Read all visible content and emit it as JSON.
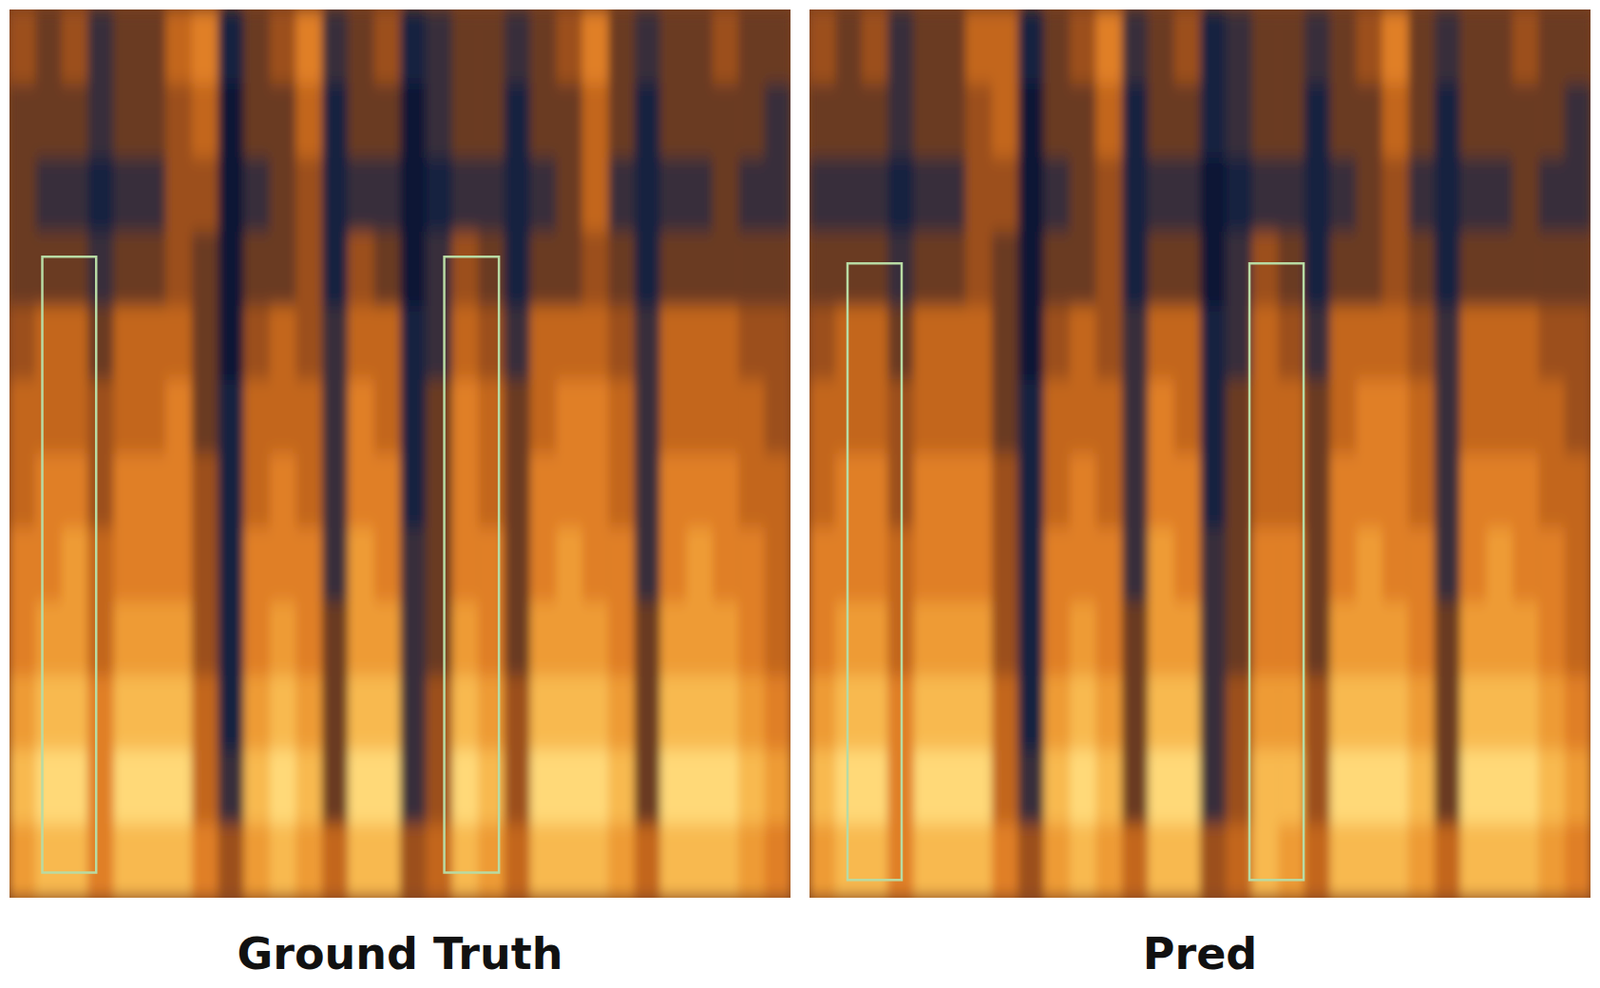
{
  "chart_data": [
    {
      "type": "heatmap",
      "title": "Ground Truth",
      "tick_labels": false,
      "xlim": [
        0,
        30
      ],
      "ylim": [
        0,
        12
      ],
      "color_range": [
        0,
        9
      ],
      "values": [
        [
          4,
          3,
          4,
          2,
          3,
          3,
          5,
          6,
          1,
          3,
          4,
          6,
          2,
          3,
          4,
          1,
          2,
          3,
          3,
          2,
          3,
          4,
          6,
          3,
          2,
          3,
          3,
          4,
          3,
          3
        ],
        [
          3,
          3,
          3,
          2,
          3,
          3,
          4,
          5,
          0,
          3,
          3,
          5,
          1,
          3,
          3,
          0,
          2,
          3,
          3,
          1,
          3,
          3,
          5,
          3,
          1,
          3,
          3,
          3,
          3,
          2
        ],
        [
          3,
          2,
          2,
          1,
          2,
          2,
          4,
          4,
          0,
          2,
          3,
          4,
          1,
          2,
          2,
          0,
          1,
          2,
          2,
          1,
          2,
          3,
          5,
          2,
          1,
          2,
          2,
          3,
          2,
          2
        ],
        [
          3,
          3,
          3,
          2,
          3,
          3,
          4,
          3,
          0,
          3,
          3,
          4,
          1,
          4,
          3,
          0,
          2,
          4,
          3,
          1,
          3,
          3,
          4,
          3,
          1,
          3,
          3,
          3,
          3,
          3
        ],
        [
          4,
          5,
          5,
          3,
          5,
          5,
          5,
          3,
          0,
          4,
          5,
          4,
          2,
          5,
          5,
          1,
          2,
          5,
          4,
          2,
          5,
          5,
          5,
          4,
          2,
          5,
          5,
          5,
          4,
          4
        ],
        [
          5,
          5,
          5,
          4,
          5,
          5,
          6,
          3,
          1,
          5,
          5,
          5,
          2,
          6,
          5,
          1,
          3,
          6,
          5,
          3,
          5,
          6,
          6,
          5,
          2,
          5,
          5,
          5,
          5,
          4
        ],
        [
          5,
          6,
          6,
          4,
          6,
          6,
          6,
          4,
          1,
          5,
          6,
          5,
          2,
          6,
          6,
          1,
          3,
          6,
          5,
          3,
          6,
          6,
          6,
          5,
          2,
          6,
          6,
          6,
          5,
          5
        ],
        [
          6,
          6,
          7,
          5,
          6,
          6,
          6,
          4,
          1,
          6,
          6,
          6,
          2,
          7,
          6,
          2,
          3,
          6,
          6,
          3,
          6,
          7,
          6,
          6,
          2,
          6,
          7,
          6,
          6,
          5
        ],
        [
          6,
          7,
          7,
          5,
          7,
          7,
          7,
          4,
          1,
          6,
          7,
          6,
          3,
          7,
          7,
          2,
          3,
          7,
          6,
          3,
          7,
          7,
          7,
          6,
          3,
          7,
          7,
          7,
          6,
          5
        ],
        [
          7,
          8,
          8,
          6,
          8,
          8,
          8,
          5,
          1,
          7,
          8,
          7,
          3,
          8,
          8,
          2,
          4,
          8,
          7,
          4,
          8,
          8,
          8,
          7,
          3,
          8,
          8,
          8,
          7,
          6
        ],
        [
          8,
          9,
          9,
          6,
          9,
          9,
          9,
          5,
          2,
          8,
          9,
          8,
          3,
          9,
          9,
          2,
          4,
          9,
          8,
          4,
          9,
          9,
          9,
          8,
          3,
          9,
          9,
          9,
          8,
          7
        ],
        [
          7,
          8,
          8,
          6,
          8,
          8,
          8,
          6,
          4,
          7,
          8,
          7,
          5,
          8,
          8,
          4,
          5,
          8,
          7,
          5,
          8,
          8,
          8,
          7,
          5,
          8,
          8,
          8,
          7,
          6
        ]
      ],
      "highlights": [
        {
          "x": [
            1.26,
            3.33
          ],
          "y": [
            0.34,
            8.66
          ]
        },
        {
          "x": [
            16.7,
            18.8
          ],
          "y": [
            0.34,
            8.66
          ]
        }
      ]
    },
    {
      "type": "heatmap",
      "title": "Pred",
      "tick_labels": false,
      "xlim": [
        0,
        30
      ],
      "ylim": [
        0,
        12
      ],
      "color_range": [
        0,
        9
      ],
      "values": [
        [
          4,
          3,
          4,
          2,
          3,
          3,
          5,
          5,
          1,
          3,
          4,
          6,
          2,
          3,
          4,
          1,
          2,
          3,
          3,
          2,
          3,
          4,
          6,
          3,
          2,
          3,
          3,
          4,
          3,
          3
        ],
        [
          3,
          3,
          3,
          2,
          3,
          3,
          4,
          5,
          0,
          3,
          3,
          5,
          1,
          3,
          3,
          1,
          2,
          3,
          3,
          1,
          3,
          3,
          5,
          3,
          1,
          3,
          3,
          3,
          3,
          2
        ],
        [
          2,
          2,
          2,
          1,
          2,
          2,
          4,
          4,
          0,
          2,
          3,
          4,
          1,
          2,
          2,
          0,
          1,
          2,
          2,
          1,
          2,
          3,
          4,
          2,
          1,
          2,
          2,
          3,
          2,
          2
        ],
        [
          3,
          3,
          3,
          2,
          3,
          3,
          4,
          3,
          0,
          3,
          3,
          4,
          1,
          3,
          3,
          0,
          2,
          4,
          3,
          1,
          3,
          3,
          4,
          3,
          1,
          3,
          3,
          3,
          3,
          3
        ],
        [
          4,
          5,
          5,
          3,
          5,
          5,
          5,
          3,
          0,
          4,
          5,
          4,
          2,
          5,
          5,
          1,
          2,
          5,
          4,
          2,
          5,
          5,
          5,
          4,
          2,
          5,
          5,
          5,
          4,
          4
        ],
        [
          5,
          5,
          5,
          4,
          5,
          5,
          5,
          3,
          1,
          5,
          5,
          5,
          2,
          6,
          5,
          1,
          3,
          5,
          5,
          3,
          5,
          6,
          6,
          5,
          2,
          5,
          5,
          5,
          5,
          4
        ],
        [
          5,
          6,
          6,
          4,
          6,
          6,
          6,
          4,
          1,
          5,
          6,
          5,
          2,
          6,
          6,
          1,
          3,
          5,
          5,
          3,
          6,
          6,
          6,
          5,
          2,
          6,
          6,
          6,
          5,
          5
        ],
        [
          6,
          6,
          6,
          5,
          6,
          6,
          6,
          4,
          1,
          6,
          6,
          6,
          2,
          7,
          6,
          2,
          3,
          6,
          6,
          3,
          6,
          7,
          6,
          6,
          2,
          6,
          7,
          6,
          6,
          5
        ],
        [
          6,
          7,
          7,
          5,
          7,
          7,
          7,
          4,
          1,
          6,
          7,
          6,
          3,
          7,
          7,
          2,
          3,
          6,
          6,
          3,
          7,
          7,
          7,
          6,
          3,
          7,
          7,
          7,
          6,
          5
        ],
        [
          7,
          8,
          8,
          6,
          8,
          8,
          8,
          5,
          1,
          7,
          8,
          7,
          3,
          8,
          8,
          2,
          4,
          7,
          7,
          4,
          8,
          8,
          8,
          7,
          3,
          8,
          8,
          8,
          7,
          6
        ],
        [
          8,
          9,
          9,
          6,
          9,
          9,
          9,
          5,
          2,
          8,
          9,
          8,
          3,
          9,
          9,
          2,
          4,
          8,
          8,
          4,
          9,
          9,
          9,
          8,
          3,
          9,
          9,
          9,
          8,
          7
        ],
        [
          7,
          8,
          8,
          6,
          8,
          8,
          8,
          6,
          4,
          7,
          8,
          7,
          5,
          8,
          8,
          4,
          5,
          8,
          7,
          5,
          8,
          8,
          8,
          7,
          5,
          8,
          8,
          8,
          7,
          6
        ]
      ],
      "highlights": [
        {
          "x": [
            1.46,
            3.54
          ],
          "y": [
            0.24,
            8.57
          ]
        },
        {
          "x": [
            16.9,
            18.98
          ],
          "y": [
            0.24,
            8.57
          ]
        }
      ]
    }
  ]
}
